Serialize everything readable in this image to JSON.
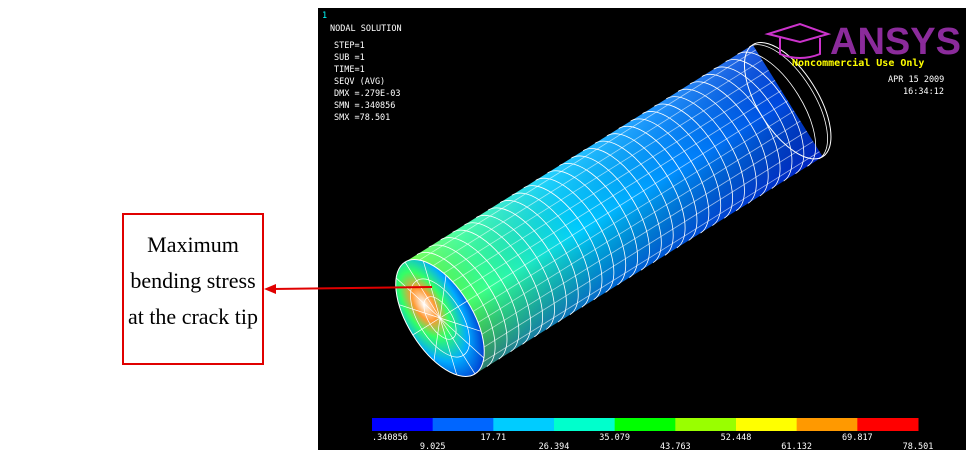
{
  "annotation": {
    "text": [
      "Maximum",
      "bending stress",
      "at the crack tip"
    ]
  },
  "window": {
    "number": "1",
    "title": "NODAL SOLUTION",
    "info": [
      "STEP=1",
      "SUB =1",
      "TIME=1",
      "SEQV     (AVG)",
      "DMX =.279E-03",
      "SMN =.340856",
      "SMX =78.501"
    ],
    "logo": "ANSYS",
    "license": "Noncommercial Use Only",
    "date": "APR 15 2009",
    "time": "16:34:12"
  },
  "legend": {
    "colors": [
      "#0000ff",
      "#0066ff",
      "#00ccff",
      "#00ffcc",
      "#00ff00",
      "#99ff00",
      "#ffff00",
      "#ff9900",
      "#ff0000"
    ],
    "labels": [
      ".340856",
      "9.025",
      "17.71",
      "26.394",
      "35.079",
      "43.763",
      "52.448",
      "61.132",
      "69.817",
      "78.501"
    ]
  }
}
